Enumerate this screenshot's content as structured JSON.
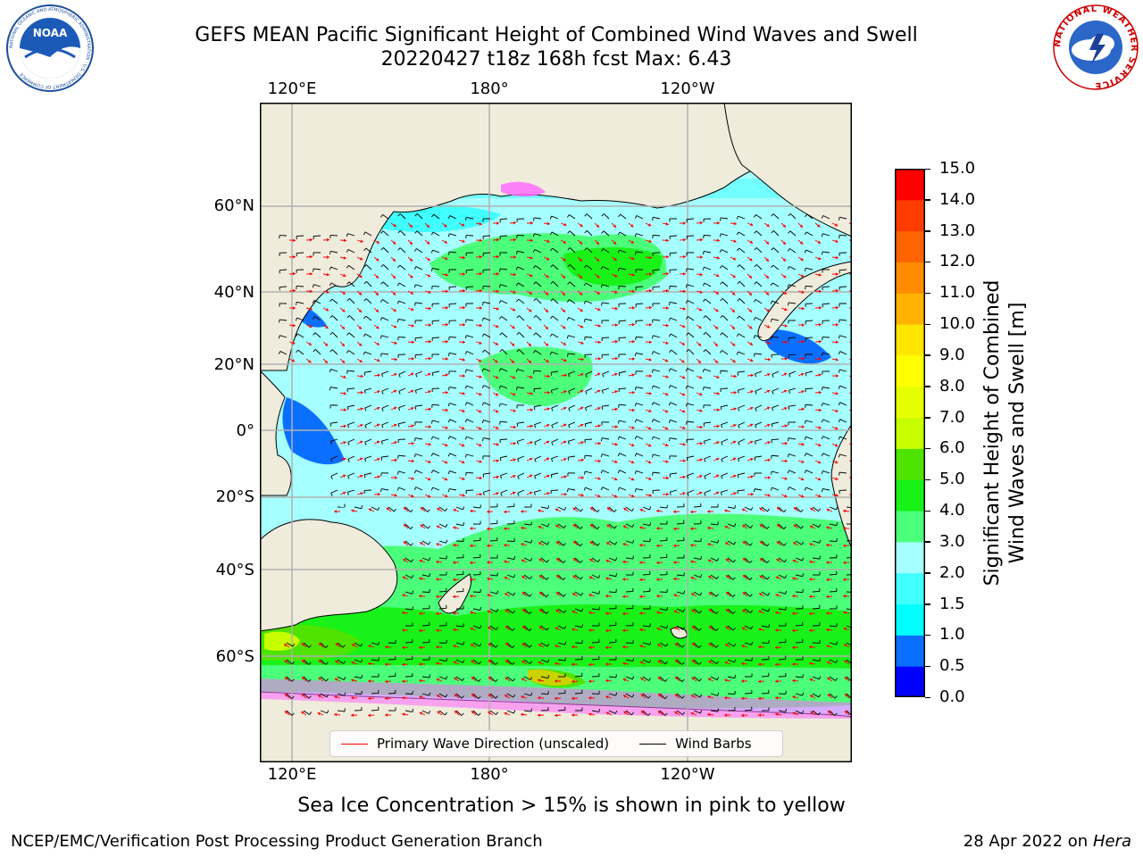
{
  "header": {
    "title_line1": "GEFS MEAN Pacific Significant Height of Combined Wind Waves and Swell",
    "title_line2": "20220427 t18z 168h fcst   Max: 6.43"
  },
  "logos": {
    "noaa_name": "noaa-logo",
    "nws_name": "nws-logo",
    "noaa_text": "NOAA",
    "noaa_ring_text": "NATIONAL OCEANIC AND ATMOSPHERIC ADMINISTRATION · U.S. DEPARTMENT OF COMMERCE",
    "nws_ring_text": "NATIONAL WEATHER SERVICE"
  },
  "chart_data": {
    "type": "heatmap",
    "description_variable": "Significant Height of Combined Wind Waves and Swell [m]",
    "x_tick_labels_top": [
      "120°E",
      "180°",
      "120°W"
    ],
    "x_tick_labels_bottom": [
      "120°E",
      "180°",
      "120°W"
    ],
    "y_tick_labels": [
      "60°N",
      "40°N",
      "20°N",
      "0°",
      "20°S",
      "40°S",
      "60°S"
    ],
    "grid": true,
    "max_value": 6.43,
    "colorbar": {
      "label_line1": "Significant Height of Combined",
      "label_line2": "Wind Waves and Swell [m]",
      "range": [
        0,
        15
      ],
      "ticks": [
        "0.0",
        "0.5",
        "1.0",
        "1.5",
        "2.0",
        "3.0",
        "4.0",
        "5.0",
        "6.0",
        "7.0",
        "8.0",
        "9.0",
        "10.0",
        "11.0",
        "12.0",
        "13.0",
        "14.0",
        "15.0"
      ],
      "colors": [
        "#0000ff",
        "#0a6fff",
        "#00ffff",
        "#40ffff",
        "#a6ffff",
        "#4cff7a",
        "#18f218",
        "#4ee400",
        "#c7ff00",
        "#e6ff00",
        "#ffff00",
        "#ffe600",
        "#ffb300",
        "#ff8c00",
        "#ff6400",
        "#ff3c00",
        "#ff0000"
      ]
    },
    "legend": {
      "position": "bottom-center",
      "entries": [
        {
          "label": "Primary Wave Direction (unscaled)",
          "color": "#ff0000"
        },
        {
          "label": "Wind Barbs",
          "color": "#000000"
        }
      ]
    },
    "note": "Sea Ice Concentration > 15% is shown in pink to yellow"
  },
  "footer": {
    "left": "NCEP/EMC/Verification Post Processing Product Generation Branch",
    "right_date": "28 Apr 2022 on ",
    "right_host": "Hera"
  }
}
